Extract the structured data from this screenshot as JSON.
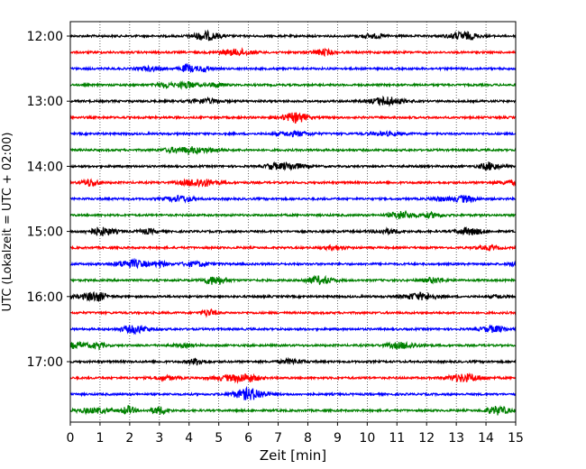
{
  "chart_data": {
    "type": "line",
    "title": "",
    "xlabel": "Zeit  [min]",
    "ylabel": "UTC (Lokalzeit = UTC + 02:00)",
    "xlim": [
      0,
      15
    ],
    "x_ticks": [
      "0",
      "1",
      "2",
      "3",
      "4",
      "5",
      "6",
      "7",
      "8",
      "9",
      "10",
      "11",
      "12",
      "13",
      "14",
      "15"
    ],
    "y_tick_labels": [
      "12:00",
      "13:00",
      "14:00",
      "15:00",
      "16:00",
      "17:00"
    ],
    "grid": "vertical dotted",
    "trace_start_utc": [
      "12:00",
      "12:15",
      "12:30",
      "12:45",
      "13:00",
      "13:15",
      "13:30",
      "13:45",
      "14:00",
      "14:15",
      "14:30",
      "14:45",
      "15:00",
      "15:15",
      "15:30",
      "15:45",
      "16:00",
      "16:15",
      "16:30",
      "16:45",
      "17:00",
      "17:15",
      "17:30",
      "17:45"
    ],
    "trace_colors_cycle": [
      "#000000",
      "#ff0000",
      "#0000ff",
      "#008000"
    ]
  }
}
